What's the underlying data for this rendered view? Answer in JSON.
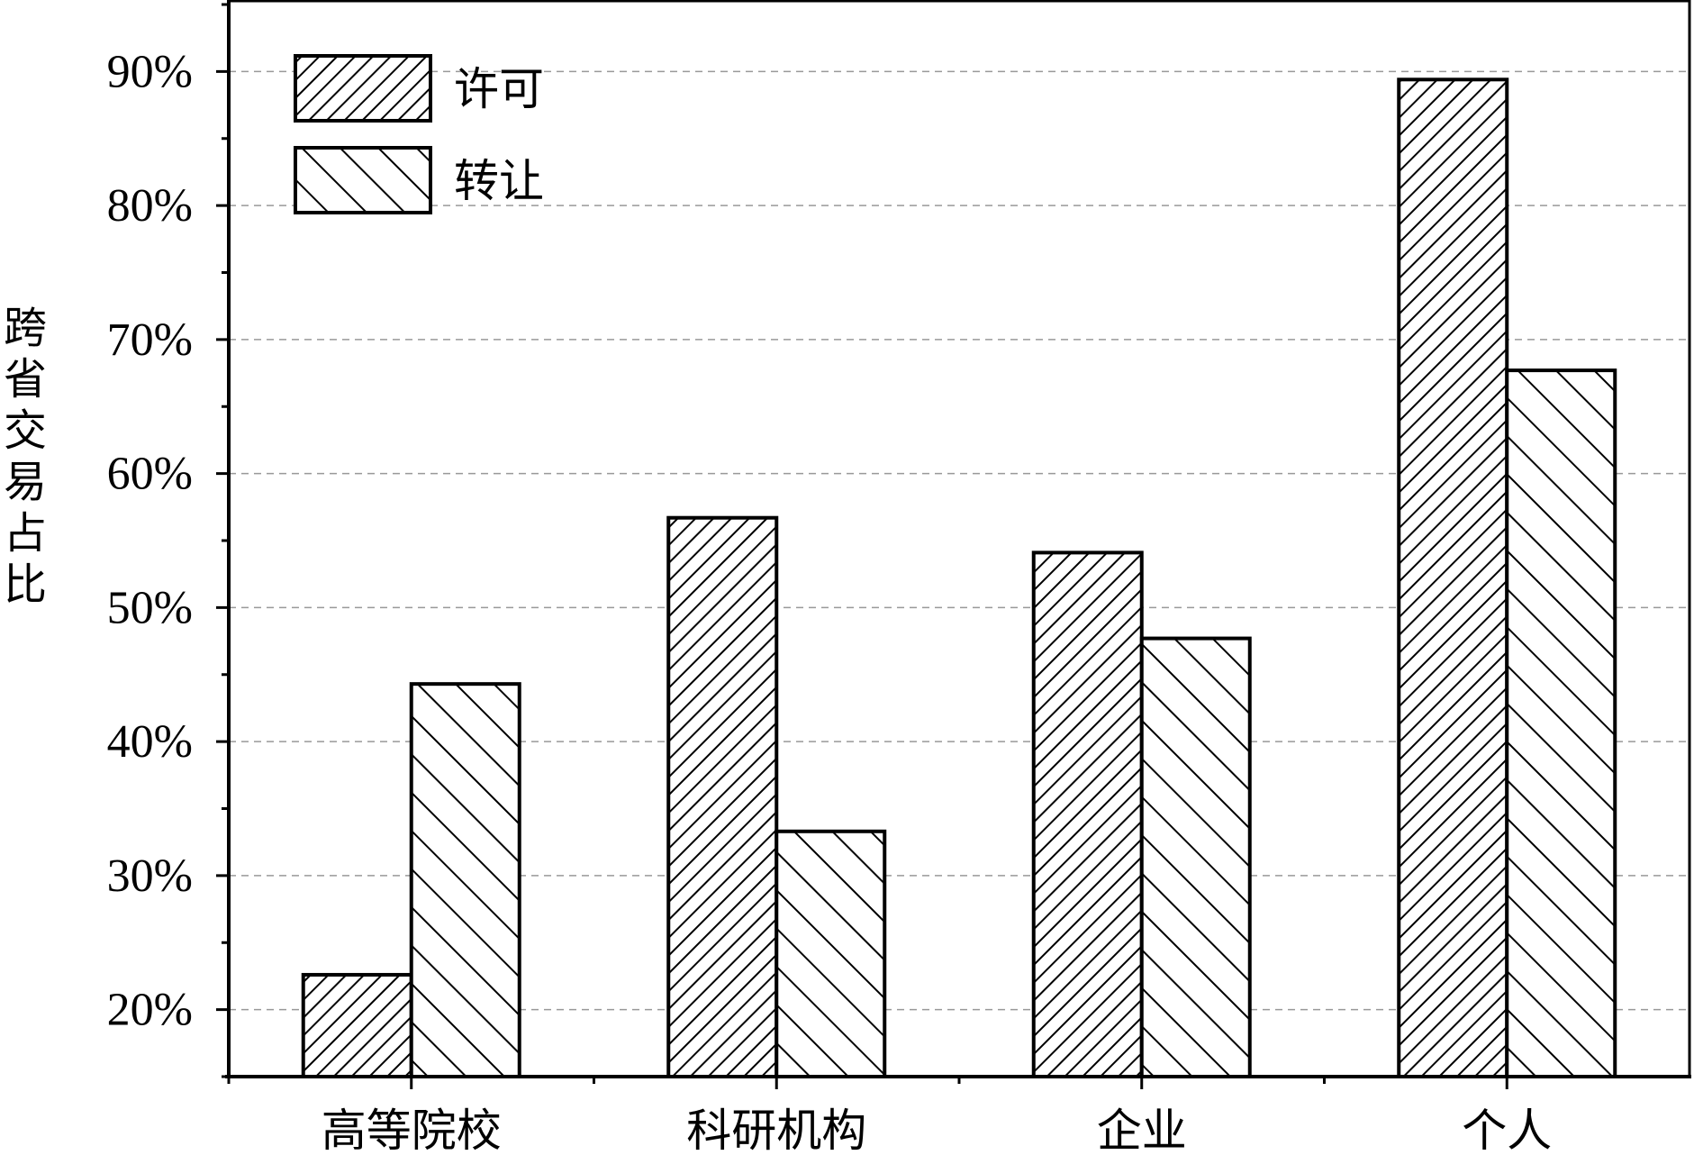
{
  "chart_data": {
    "type": "bar",
    "title": "",
    "xlabel": "",
    "ylabel": "跨省交易占比",
    "ylim": [
      15,
      95
    ],
    "yticks": [
      20,
      30,
      40,
      50,
      60,
      70,
      80,
      90
    ],
    "ytick_labels": [
      "20%",
      "30%",
      "40%",
      "50%",
      "60%",
      "70%",
      "80%",
      "90%"
    ],
    "categories": [
      "高等院校",
      "科研机构",
      "企业",
      "个人"
    ],
    "series": [
      {
        "name": "许可",
        "pattern": "dense-forward-hatch",
        "values": [
          22.6,
          56.7,
          54.1,
          89.4
        ]
      },
      {
        "name": "转让",
        "pattern": "sparse-backward-hatch",
        "values": [
          44.3,
          33.3,
          47.7,
          67.7
        ]
      }
    ],
    "grid": "horizontal dashed",
    "legend_position": "top-left",
    "colors": {
      "stroke": "#000000",
      "grid": "#999999",
      "fill": "#ffffff"
    }
  }
}
